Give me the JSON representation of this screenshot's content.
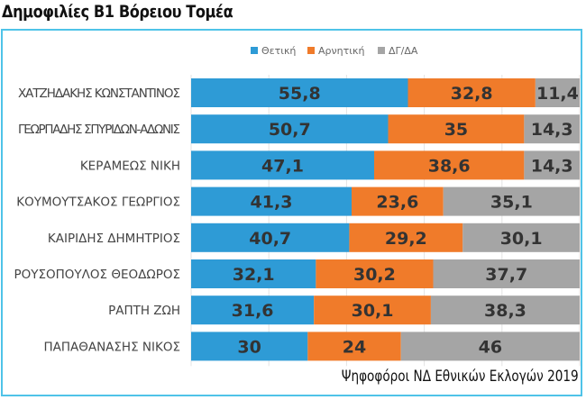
{
  "title": "Δημοφιλίες Β1 Βόρειου Τομέα",
  "footer": "Ψηφοφόροι ΝΔ Εθνικών Εκλογών 2019",
  "chart_data": {
    "type": "bar",
    "orientation": "horizontal",
    "stacked": true,
    "title": "Δημοφιλίες Β1 Βόρειου Τομέα",
    "categories": [
      "ΧΑΤΖΗΔΑΚΗΣ ΚΩΝΣΤΑΝΤΙΝΟΣ",
      "ΓΕΩΡΓΙΑΔΗΣ ΣΠΥΡΙΔΩΝ-ΑΔΩΝΙΣ",
      "ΚΕΡΑΜΕΩΣ ΝΙΚΗ",
      "ΚΟΥΜΟΥΤΣΑΚΟΣ ΓΕΩΡΓΙΟΣ",
      "ΚΑΙΡΙΔΗΣ ΔΗΜΗΤΡΙΟΣ",
      "ΡΟΥΣΟΠΟΥΛΟΣ ΘΕΟΔΩΡΟΣ",
      "ΡΑΠΤΗ ΖΩΗ",
      "ΠΑΠΑΘΑΝΑΣΗΣ ΝΙΚΟΣ"
    ],
    "series": [
      {
        "name": "Θετική",
        "color": "#2e9bd6",
        "values": [
          55.8,
          50.7,
          47.1,
          41.3,
          40.7,
          32.1,
          31.6,
          30
        ],
        "labels": [
          "55,8",
          "50,7",
          "47,1",
          "41,3",
          "40,7",
          "32,1",
          "31,6",
          "30"
        ]
      },
      {
        "name": "Αρνητική",
        "color": "#f07b2a",
        "values": [
          32.8,
          35,
          38.6,
          23.6,
          29.2,
          30.2,
          30.1,
          24
        ],
        "labels": [
          "32,8",
          "35",
          "38,6",
          "23,6",
          "29,2",
          "30,2",
          "30,1",
          "24"
        ]
      },
      {
        "name": "ΔΓ/ΔΑ",
        "color": "#a5a5a5",
        "values": [
          11.4,
          14.3,
          14.3,
          35.1,
          30.1,
          37.7,
          38.3,
          46
        ],
        "labels": [
          "11,4",
          "14,3",
          "14,3",
          "35,1",
          "30,1",
          "37,7",
          "38,3",
          "46"
        ]
      }
    ],
    "xlim": [
      0,
      100
    ],
    "grid": true,
    "legend": "top-center"
  }
}
